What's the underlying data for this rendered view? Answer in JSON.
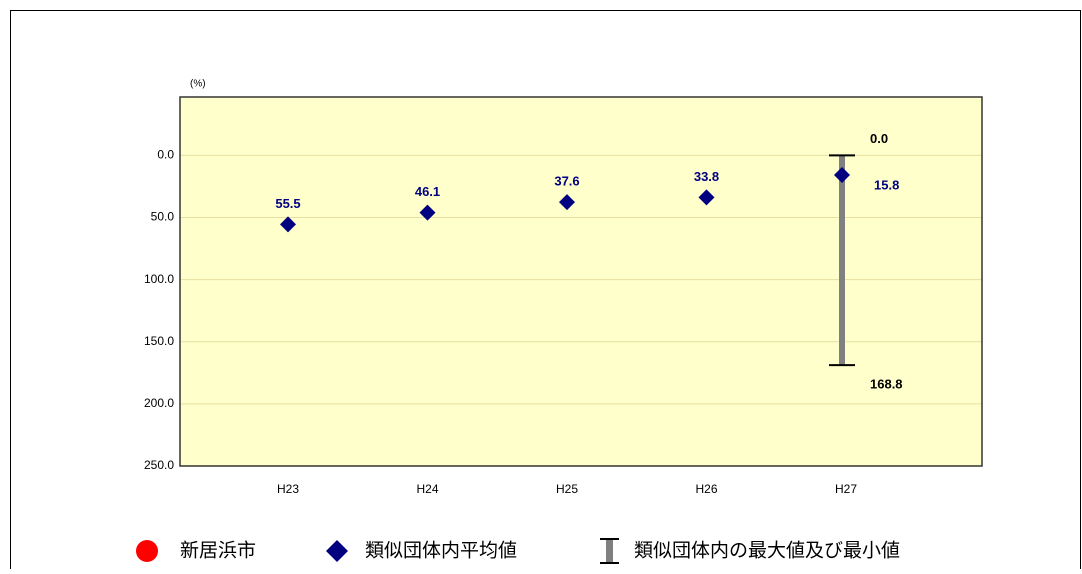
{
  "chart_data": {
    "type": "dot",
    "y_label": "(%)",
    "categories": [
      "H23",
      "H24",
      "H25",
      "H26",
      "H27"
    ],
    "ylim": [
      250,
      -47
    ],
    "inverted": true,
    "yticks": [
      {
        "value": 0,
        "label": "0.0"
      },
      {
        "value": 50,
        "label": "50.0"
      },
      {
        "value": 100,
        "label": "100.0"
      },
      {
        "value": 150,
        "label": "150.0"
      },
      {
        "value": 200,
        "label": "200.0"
      },
      {
        "value": 250,
        "label": "250.0"
      }
    ],
    "grid": true,
    "series": [
      {
        "name": "新居浜市",
        "color": "#ff0000",
        "marker": "circle",
        "values": [
          null,
          null,
          null,
          null,
          null
        ]
      },
      {
        "name": "類似団体内平均値",
        "color": "#000080",
        "marker": "diamond",
        "values": [
          55.5,
          46.1,
          37.6,
          33.8,
          15.8
        ]
      }
    ],
    "range": {
      "name": "類似団体内の最大値及び最小値",
      "color": "#808080",
      "min": {
        "values": [
          null,
          null,
          null,
          null,
          0
        ],
        "value_labels": [
          null,
          null,
          null,
          null,
          "0.0"
        ]
      },
      "max": {
        "values": [
          null,
          null,
          null,
          null,
          168.8
        ]
      }
    }
  }
}
